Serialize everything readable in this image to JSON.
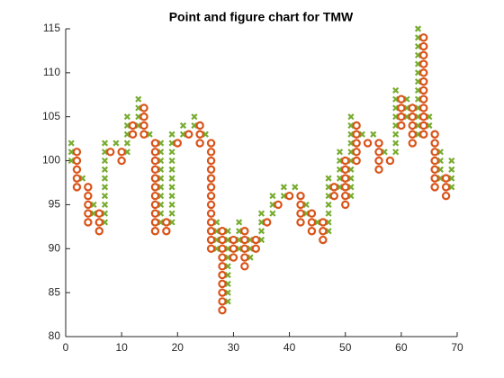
{
  "chart_data": {
    "type": "scatter",
    "title": "Point and figure chart for TMW",
    "xlim": [
      0,
      70
    ],
    "xticks": [
      0,
      10,
      20,
      30,
      40,
      50,
      60,
      70
    ],
    "ylim": [
      80,
      115
    ],
    "yticks": [
      80,
      85,
      90,
      95,
      100,
      105,
      110,
      115
    ],
    "series": [
      {
        "marker": "x",
        "color": "#77ac30",
        "x": [
          1,
          1,
          1,
          3,
          5,
          5,
          7,
          7,
          7,
          7,
          7,
          7,
          7,
          7,
          7,
          7,
          9,
          11,
          11,
          11,
          11,
          11,
          13,
          13,
          13,
          13,
          15,
          17,
          17,
          17,
          17,
          17,
          17,
          17,
          17,
          17,
          17,
          19,
          19,
          19,
          19,
          19,
          19,
          19,
          19,
          19,
          19,
          19,
          21,
          21,
          23,
          23,
          25,
          27,
          27,
          27,
          27,
          29,
          29,
          29,
          29,
          29,
          29,
          29,
          29,
          29,
          31,
          31,
          31,
          31,
          33,
          33,
          33,
          35,
          35,
          35,
          35,
          37,
          37,
          37,
          39,
          39,
          41,
          43,
          43,
          45,
          47,
          47,
          47,
          47,
          47,
          47,
          47,
          49,
          49,
          49,
          49,
          49,
          51,
          51,
          51,
          51,
          51,
          51,
          51,
          51,
          51,
          51,
          53,
          55,
          57,
          59,
          59,
          59,
          59,
          59,
          59,
          59,
          59,
          61,
          61,
          61,
          63,
          63,
          63,
          63,
          63,
          63,
          63,
          63,
          63,
          63,
          63,
          63,
          63,
          65,
          65,
          67,
          67,
          67,
          67,
          69,
          69,
          69,
          69
        ],
        "values": [
          100,
          101,
          102,
          98,
          94,
          95,
          93,
          94,
          95,
          96,
          97,
          98,
          99,
          100,
          101,
          102,
          102,
          101,
          102,
          103,
          104,
          105,
          104,
          105,
          106,
          107,
          103,
          93,
          94,
          95,
          96,
          97,
          98,
          99,
          100,
          101,
          102,
          93,
          94,
          95,
          96,
          97,
          98,
          99,
          100,
          101,
          102,
          103,
          103,
          104,
          104,
          105,
          103,
          90,
          91,
          92,
          93,
          84,
          85,
          86,
          87,
          88,
          89,
          90,
          91,
          92,
          90,
          91,
          92,
          93,
          89,
          90,
          91,
          91,
          92,
          93,
          94,
          94,
          95,
          96,
          96,
          97,
          97,
          94,
          95,
          93,
          92,
          93,
          94,
          95,
          96,
          97,
          98,
          97,
          98,
          99,
          100,
          101,
          96,
          97,
          98,
          99,
          100,
          101,
          102,
          103,
          104,
          105,
          103,
          103,
          101,
          101,
          102,
          103,
          104,
          105,
          106,
          107,
          108,
          105,
          106,
          107,
          103,
          104,
          105,
          106,
          107,
          108,
          109,
          110,
          111,
          112,
          113,
          114,
          115,
          104,
          105,
          98,
          99,
          100,
          101,
          97,
          98,
          99,
          100
        ]
      },
      {
        "marker": "o",
        "color": "#d95319",
        "x": [
          2,
          2,
          2,
          2,
          2,
          4,
          4,
          4,
          4,
          4,
          6,
          6,
          6,
          8,
          10,
          10,
          12,
          12,
          14,
          14,
          14,
          14,
          16,
          16,
          16,
          16,
          16,
          16,
          16,
          16,
          16,
          16,
          16,
          18,
          18,
          20,
          22,
          24,
          24,
          24,
          26,
          26,
          26,
          26,
          26,
          26,
          26,
          26,
          26,
          26,
          26,
          26,
          26,
          28,
          28,
          28,
          28,
          28,
          28,
          28,
          28,
          28,
          28,
          30,
          30,
          30,
          32,
          32,
          32,
          32,
          32,
          34,
          34,
          36,
          38,
          40,
          42,
          42,
          42,
          42,
          44,
          44,
          44,
          46,
          46,
          46,
          48,
          48,
          50,
          50,
          50,
          50,
          50,
          50,
          52,
          52,
          52,
          52,
          52,
          54,
          56,
          56,
          56,
          56,
          58,
          60,
          60,
          60,
          60,
          62,
          62,
          62,
          62,
          62,
          64,
          64,
          64,
          64,
          64,
          64,
          64,
          64,
          64,
          64,
          64,
          64,
          66,
          66,
          66,
          66,
          66,
          66,
          66,
          68,
          68,
          68
        ],
        "values": [
          97,
          98,
          99,
          100,
          101,
          93,
          94,
          95,
          96,
          97,
          92,
          93,
          94,
          101,
          100,
          101,
          103,
          104,
          103,
          104,
          105,
          106,
          92,
          93,
          94,
          95,
          96,
          97,
          98,
          99,
          100,
          101,
          102,
          92,
          93,
          102,
          103,
          102,
          103,
          104,
          90,
          91,
          92,
          93,
          94,
          95,
          96,
          97,
          98,
          99,
          100,
          101,
          102,
          83,
          84,
          85,
          86,
          87,
          88,
          89,
          90,
          91,
          92,
          89,
          90,
          91,
          88,
          89,
          90,
          91,
          92,
          90,
          91,
          93,
          95,
          96,
          93,
          94,
          95,
          96,
          92,
          93,
          94,
          91,
          92,
          93,
          96,
          97,
          95,
          96,
          97,
          98,
          99,
          100,
          100,
          101,
          102,
          103,
          104,
          102,
          99,
          100,
          101,
          102,
          100,
          104,
          105,
          106,
          107,
          102,
          103,
          104,
          105,
          106,
          103,
          104,
          105,
          106,
          107,
          108,
          109,
          110,
          111,
          112,
          113,
          114,
          97,
          98,
          99,
          100,
          101,
          102,
          103,
          96,
          97,
          98
        ]
      }
    ]
  }
}
